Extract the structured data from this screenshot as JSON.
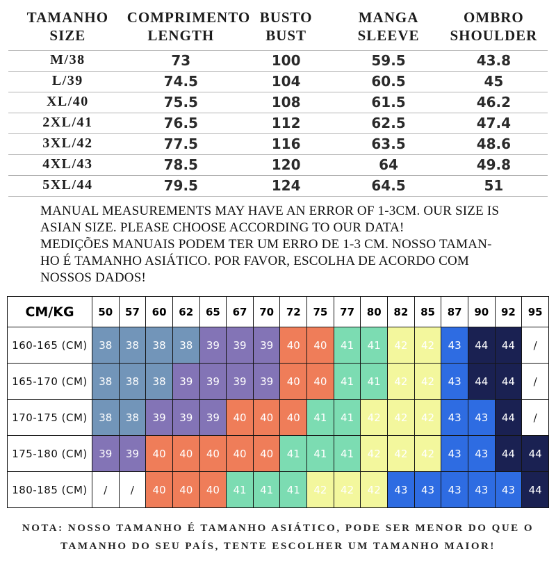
{
  "size_table": {
    "headers": [
      {
        "line1": "TAMANHO",
        "line2": "SIZE"
      },
      {
        "line1": "COMPRIMENTO",
        "line2": "LENGTH"
      },
      {
        "line1": "BUSTO",
        "line2": "BUST"
      },
      {
        "line1": "MANGA",
        "line2": "SLEEVE"
      },
      {
        "line1": "OMBRO",
        "line2": "SHOULDER"
      }
    ],
    "rows": [
      [
        "M/38",
        "73",
        "100",
        "59.5",
        "43.8"
      ],
      [
        "L/39",
        "74.5",
        "104",
        "60.5",
        "45"
      ],
      [
        "XL/40",
        "75.5",
        "108",
        "61.5",
        "46.2"
      ],
      [
        "2XL/41",
        "76.5",
        "112",
        "62.5",
        "47.4"
      ],
      [
        "3XL/42",
        "77.5",
        "116",
        "63.5",
        "48.6"
      ],
      [
        "4XL/43",
        "78.5",
        "120",
        "64",
        "49.8"
      ],
      [
        "5XL/44",
        "79.5",
        "124",
        "64.5",
        "51"
      ]
    ]
  },
  "notes": {
    "lines": [
      "MANUAL MEASUREMENTS MAY HAVE AN ERROR OF 1-3CM. OUR SIZE IS",
      "ASIAN SIZE. PLEASE CHOOSE ACCORDING TO OUR DATA!",
      "MEDIÇÕES MANUAIS PODEM TER UM ERRO DE 1-3 CM. NOSSO TAMAN-",
      "HO É TAMANHO ASIÁTICO. POR FAVOR, ESCOLHA DE ACORDO COM",
      "NOSSOS DADOS!"
    ]
  },
  "weight_table": {
    "corner_label": "CM/KG",
    "weights": [
      "50",
      "57",
      "60",
      "62",
      "65",
      "67",
      "70",
      "72",
      "75",
      "77",
      "80",
      "82",
      "85",
      "87",
      "90",
      "92",
      "95"
    ],
    "rows": [
      {
        "label": "160-165 (CM)",
        "cells": [
          "38",
          "38",
          "38",
          "38",
          "39",
          "39",
          "39",
          "40",
          "40",
          "41",
          "41",
          "42",
          "42",
          "43",
          "44",
          "44",
          "/"
        ]
      },
      {
        "label": "165-170 (CM)",
        "cells": [
          "38",
          "38",
          "38",
          "39",
          "39",
          "39",
          "39",
          "40",
          "40",
          "41",
          "41",
          "42",
          "42",
          "43",
          "44",
          "44",
          "/"
        ]
      },
      {
        "label": "170-175 (CM)",
        "cells": [
          "38",
          "38",
          "39",
          "39",
          "39",
          "40",
          "40",
          "40",
          "41",
          "41",
          "42",
          "42",
          "42",
          "43",
          "43",
          "44",
          "/"
        ]
      },
      {
        "label": "175-180 (CM)",
        "cells": [
          "39",
          "39",
          "40",
          "40",
          "40",
          "40",
          "40",
          "41",
          "41",
          "41",
          "42",
          "42",
          "42",
          "43",
          "43",
          "44",
          "44"
        ]
      },
      {
        "label": "180-185 (CM)",
        "cells": [
          "/",
          "/",
          "40",
          "40",
          "40",
          "41",
          "41",
          "41",
          "42",
          "42",
          "42",
          "43",
          "43",
          "43",
          "43",
          "43",
          "44"
        ]
      }
    ],
    "value_colors": {
      "38": "#7295b9",
      "39": "#8374b6",
      "40": "#ef7d59",
      "41": "#7cdcb2",
      "42": "#f3f79d",
      "43": "#2e6ce2",
      "44": "#1a2152",
      "/": "#ffffff"
    },
    "text_colors": {
      "default": "#ffffff",
      "slash": "#1a1a1a"
    }
  },
  "footer_note": {
    "lines": [
      "NOTA: NOSSO TAMANHO É TAMANHO ASIÁTICO, PODE SER MENOR DO QUE O",
      "TAMANHO DO SEU PAÍS, TENTE ESCOLHER UM TAMANHO MAIOR!"
    ]
  }
}
